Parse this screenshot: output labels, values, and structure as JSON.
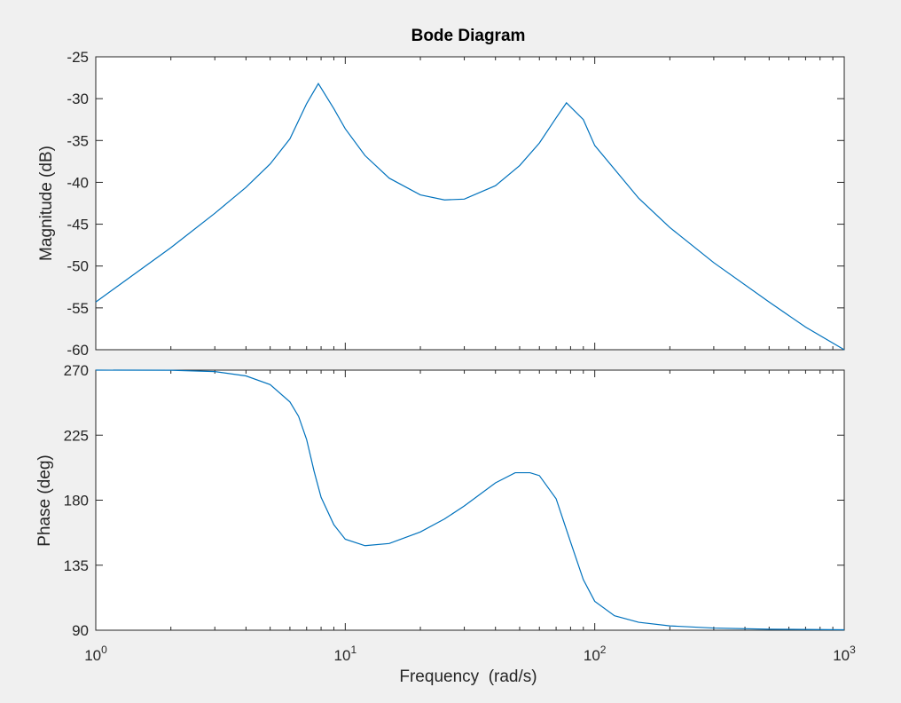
{
  "chart_data": {
    "type": "line",
    "title": "Bode Diagram",
    "xlabel": "Frequency  (rad/s)",
    "xscale": "log",
    "xlim": [
      1,
      1000
    ],
    "x_ticks": [
      {
        "base": "10",
        "exp": "0",
        "value": 1
      },
      {
        "base": "10",
        "exp": "1",
        "value": 10
      },
      {
        "base": "10",
        "exp": "2",
        "value": 100
      },
      {
        "base": "10",
        "exp": "3",
        "value": 1000
      }
    ],
    "grid": false,
    "colors": {
      "line": "#0072bd",
      "axes_bg": "#ffffff",
      "figure_bg": "#f0f0f0",
      "axis": "#262626"
    },
    "panels": [
      {
        "name": "magnitude",
        "ylabel": "Magnitude (dB)",
        "ylim": [
          -60,
          -25
        ],
        "y_ticks": [
          "-25",
          "-30",
          "-35",
          "-40",
          "-45",
          "-50",
          "-55",
          "-60"
        ],
        "x": [
          1,
          2,
          3,
          4,
          5,
          6,
          7,
          7.8,
          9,
          10,
          12,
          15,
          20,
          25,
          30,
          40,
          50,
          60,
          70,
          77,
          90,
          100,
          150,
          200,
          300,
          500,
          700,
          1000
        ],
        "y": [
          -54.3,
          -47.8,
          -43.7,
          -40.6,
          -37.8,
          -34.8,
          -30.6,
          -28.2,
          -31.2,
          -33.6,
          -36.8,
          -39.5,
          -41.5,
          -42.1,
          -42.0,
          -40.4,
          -38.0,
          -35.3,
          -32.3,
          -30.5,
          -32.5,
          -35.6,
          -41.9,
          -45.4,
          -49.6,
          -54.3,
          -57.3,
          -60.0
        ]
      },
      {
        "name": "phase",
        "ylabel": "Phase (deg)",
        "ylim": [
          90,
          270
        ],
        "y_ticks": [
          "270",
          "225",
          "180",
          "135",
          "90"
        ],
        "x": [
          1,
          2,
          3,
          4,
          5,
          6,
          6.5,
          7,
          7.5,
          8,
          9,
          10,
          12,
          15,
          20,
          25,
          30,
          40,
          48,
          55,
          60,
          70,
          80,
          90,
          100,
          120,
          150,
          200,
          300,
          500,
          1000
        ],
        "y": [
          270,
          269.9,
          269,
          266,
          260,
          248,
          238,
          222,
          200,
          182,
          163,
          153,
          148.5,
          150,
          158,
          167,
          176,
          192,
          199,
          199,
          197,
          181,
          151,
          125,
          110,
          100,
          95.5,
          93,
          91.5,
          90.7,
          90.3
        ]
      }
    ]
  }
}
